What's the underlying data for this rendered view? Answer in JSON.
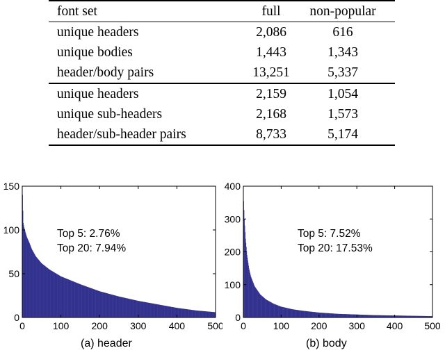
{
  "table": {
    "headers": [
      "font set",
      "full",
      "non-popular"
    ],
    "groups": [
      [
        [
          "unique headers",
          "2,086",
          "616"
        ],
        [
          "unique bodies",
          "1,443",
          "1,343"
        ],
        [
          "header/body pairs",
          "13,251",
          "5,337"
        ]
      ],
      [
        [
          "unique headers",
          "2,159",
          "1,054"
        ],
        [
          "unique sub-headers",
          "2,168",
          "1,573"
        ],
        [
          "header/sub-header pairs",
          "8,733",
          "5,174"
        ]
      ]
    ]
  },
  "chart_data": [
    {
      "type": "bar",
      "caption": "(a) header",
      "title": "",
      "xlabel": "",
      "ylabel": "",
      "xlim": [
        0,
        500
      ],
      "ylim": [
        0,
        150
      ],
      "xticks": [
        0,
        100,
        200,
        300,
        400,
        500
      ],
      "yticks": [
        0,
        50,
        100,
        150
      ],
      "grid": false,
      "bar_color": "#33338f",
      "annotations": [
        "Top 5: 2.76%",
        "Top 20: 7.94%"
      ],
      "curve": [
        [
          1,
          140
        ],
        [
          2,
          122
        ],
        [
          3,
          108
        ],
        [
          5,
          103
        ],
        [
          8,
          98
        ],
        [
          12,
          92
        ],
        [
          18,
          86
        ],
        [
          25,
          78
        ],
        [
          35,
          70
        ],
        [
          50,
          62
        ],
        [
          70,
          55
        ],
        [
          100,
          47
        ],
        [
          150,
          38
        ],
        [
          200,
          30
        ],
        [
          250,
          24
        ],
        [
          300,
          19
        ],
        [
          350,
          15
        ],
        [
          400,
          11
        ],
        [
          450,
          8
        ],
        [
          500,
          6
        ]
      ]
    },
    {
      "type": "bar",
      "caption": "(b) body",
      "title": "",
      "xlabel": "",
      "ylabel": "",
      "xlim": [
        0,
        500
      ],
      "ylim": [
        0,
        400
      ],
      "xticks": [
        0,
        100,
        200,
        300,
        400,
        500
      ],
      "yticks": [
        0,
        100,
        200,
        300,
        400
      ],
      "grid": false,
      "bar_color": "#33338f",
      "annotations": [
        "Top 5: 7.52%",
        "Top 20: 17.53%"
      ],
      "curve": [
        [
          1,
          355
        ],
        [
          3,
          300
        ],
        [
          6,
          240
        ],
        [
          10,
          190
        ],
        [
          15,
          150
        ],
        [
          20,
          125
        ],
        [
          30,
          95
        ],
        [
          45,
          70
        ],
        [
          60,
          55
        ],
        [
          80,
          42
        ],
        [
          100,
          33
        ],
        [
          130,
          25
        ],
        [
          160,
          20
        ],
        [
          200,
          15
        ],
        [
          250,
          11
        ],
        [
          300,
          9
        ],
        [
          350,
          7
        ],
        [
          400,
          6
        ],
        [
          450,
          5
        ],
        [
          500,
          4
        ]
      ]
    }
  ]
}
